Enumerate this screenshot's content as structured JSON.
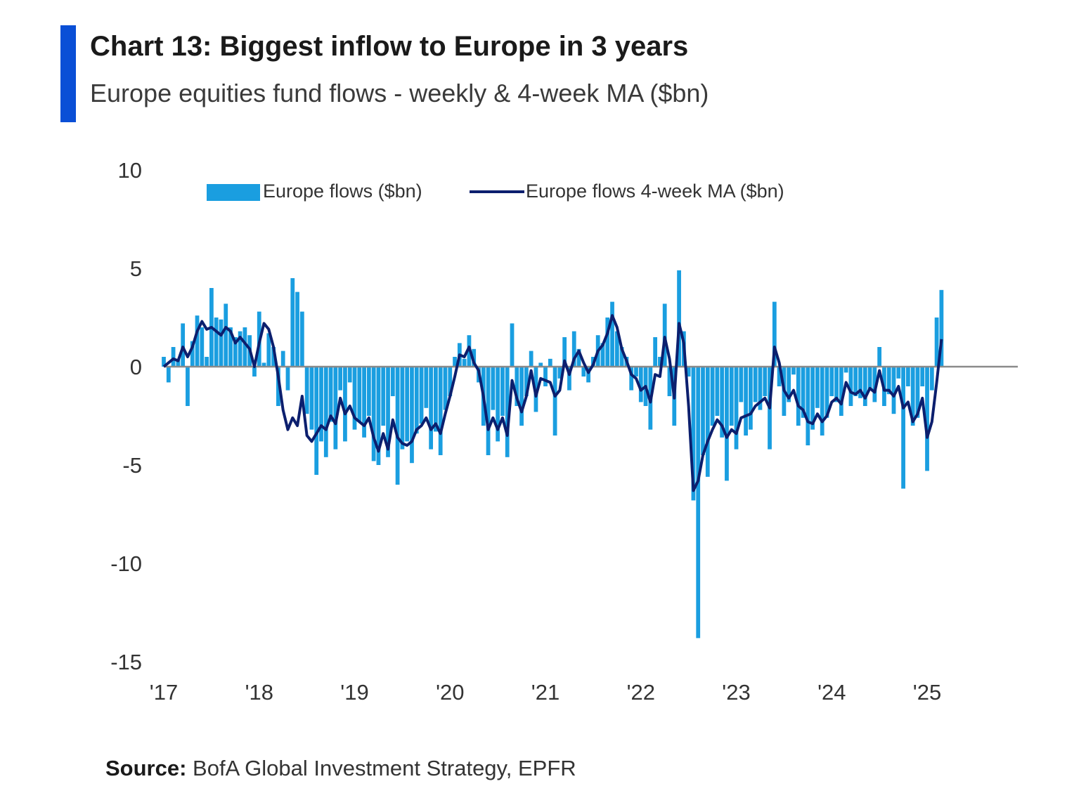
{
  "header": {
    "accent_color": "#0a4fd6",
    "title": "Chart 13: Biggest inflow to Europe in 3 years",
    "subtitle": "Europe equities fund flows - weekly & 4-week MA ($bn)"
  },
  "footer": {
    "source_label": "Source:",
    "source_text": " BofA Global Investment Strategy, EPFR"
  },
  "chart_data": {
    "type": "bar",
    "ylim": [
      -15,
      10
    ],
    "yticks": [
      10,
      5,
      0,
      -5,
      -10,
      -15
    ],
    "xlim": [
      2017.0,
      2025.95
    ],
    "xticks": [
      {
        "x": 2017.0,
        "label": "'17"
      },
      {
        "x": 2018.0,
        "label": "'18"
      },
      {
        "x": 2019.0,
        "label": "'19"
      },
      {
        "x": 2020.0,
        "label": "'20"
      },
      {
        "x": 2021.0,
        "label": "'21"
      },
      {
        "x": 2022.0,
        "label": "'22"
      },
      {
        "x": 2023.0,
        "label": "'23"
      },
      {
        "x": 2024.0,
        "label": "'24"
      },
      {
        "x": 2025.0,
        "label": "'25"
      }
    ],
    "legend_placement": "top",
    "grid": false,
    "series": [
      {
        "name": "Europe flows ($bn)",
        "kind": "bar",
        "color": "#1a9ee0",
        "x": [
          2017.0,
          2017.05,
          2017.1,
          2017.15,
          2017.2,
          2017.25,
          2017.3,
          2017.35,
          2017.4,
          2017.45,
          2017.5,
          2017.55,
          2017.6,
          2017.65,
          2017.7,
          2017.75,
          2017.8,
          2017.85,
          2017.9,
          2017.95,
          2018.0,
          2018.05,
          2018.1,
          2018.15,
          2018.2,
          2018.25,
          2018.3,
          2018.35,
          2018.4,
          2018.45,
          2018.5,
          2018.55,
          2018.6,
          2018.65,
          2018.7,
          2018.75,
          2018.8,
          2018.85,
          2018.9,
          2018.95,
          2019.0,
          2019.05,
          2019.1,
          2019.15,
          2019.2,
          2019.25,
          2019.3,
          2019.35,
          2019.4,
          2019.45,
          2019.5,
          2019.55,
          2019.6,
          2019.65,
          2019.7,
          2019.75,
          2019.8,
          2019.85,
          2019.9,
          2019.95,
          2020.0,
          2020.05,
          2020.1,
          2020.15,
          2020.2,
          2020.25,
          2020.3,
          2020.35,
          2020.4,
          2020.45,
          2020.5,
          2020.55,
          2020.6,
          2020.65,
          2020.7,
          2020.75,
          2020.8,
          2020.85,
          2020.9,
          2020.95,
          2021.0,
          2021.05,
          2021.1,
          2021.15,
          2021.2,
          2021.25,
          2021.3,
          2021.35,
          2021.4,
          2021.45,
          2021.5,
          2021.55,
          2021.6,
          2021.65,
          2021.7,
          2021.75,
          2021.8,
          2021.85,
          2021.9,
          2021.95,
          2022.0,
          2022.05,
          2022.1,
          2022.15,
          2022.2,
          2022.25,
          2022.3,
          2022.35,
          2022.4,
          2022.45,
          2022.5,
          2022.55,
          2022.6,
          2022.65,
          2022.7,
          2022.75,
          2022.8,
          2022.85,
          2022.9,
          2022.95,
          2023.0,
          2023.05,
          2023.1,
          2023.15,
          2023.2,
          2023.25,
          2023.3,
          2023.35,
          2023.4,
          2023.45,
          2023.5,
          2023.55,
          2023.6,
          2023.65,
          2023.7,
          2023.75,
          2023.8,
          2023.85,
          2023.9,
          2023.95,
          2024.0,
          2024.05,
          2024.1,
          2024.15,
          2024.2,
          2024.25,
          2024.3,
          2024.35,
          2024.4,
          2024.45,
          2024.5,
          2024.55,
          2024.6,
          2024.65,
          2024.7,
          2024.75,
          2024.8,
          2024.85,
          2024.9,
          2024.95,
          2025.0,
          2025.05,
          2025.1,
          2025.15
        ],
        "values": [
          0.5,
          -0.8,
          1.0,
          0.4,
          2.2,
          -2.0,
          1.3,
          2.6,
          2.0,
          0.5,
          4.0,
          2.5,
          2.4,
          3.2,
          2.0,
          1.5,
          1.8,
          2.0,
          1.6,
          -0.5,
          2.8,
          0.2,
          1.7,
          1.0,
          -2.0,
          0.8,
          -1.2,
          4.5,
          3.8,
          2.8,
          -2.4,
          -3.2,
          -5.5,
          -3.8,
          -4.6,
          -2.8,
          -4.2,
          -1.2,
          -3.8,
          -0.8,
          -3.2,
          -2.8,
          -3.6,
          -2.5,
          -4.8,
          -5.0,
          -3.0,
          -4.6,
          -1.5,
          -6.0,
          -4.2,
          -3.8,
          -4.9,
          -3.4,
          -2.9,
          -2.1,
          -4.2,
          -3.3,
          -4.5,
          -2.2,
          -1.5,
          0.5,
          1.2,
          0.4,
          1.6,
          0.9,
          -0.8,
          -3.0,
          -4.5,
          -2.2,
          -3.8,
          -2.5,
          -4.6,
          2.2,
          -2.0,
          -3.0,
          -1.5,
          0.8,
          -2.3,
          0.2,
          -1.0,
          0.4,
          -3.5,
          -0.6,
          1.5,
          -1.2,
          1.8,
          0.9,
          -0.5,
          -0.8,
          0.5,
          1.6,
          1.2,
          2.5,
          3.3,
          1.8,
          1.0,
          0.5,
          -1.2,
          -0.5,
          -1.8,
          -2.0,
          -3.2,
          1.5,
          0.5,
          3.2,
          -1.5,
          -3.0,
          4.9,
          1.8,
          -0.5,
          -6.8,
          -13.8,
          -4.5,
          -5.6,
          -3.0,
          -2.5,
          -3.6,
          -5.8,
          -3.0,
          -4.2,
          -1.8,
          -3.5,
          -3.2,
          -1.8,
          -2.2,
          -1.5,
          -4.2,
          3.3,
          -1.0,
          -2.5,
          -1.8,
          -0.4,
          -3.0,
          -2.6,
          -4.0,
          -3.2,
          -2.1,
          -3.5,
          -2.6,
          -1.5,
          -1.8,
          -2.5,
          -0.3,
          -2.0,
          -1.5,
          -1.6,
          -2.0,
          -1.2,
          -1.8,
          1.0,
          -2.0,
          -1.4,
          -2.4,
          -0.6,
          -6.2,
          -1.0,
          -3.0,
          -2.6,
          -1.0,
          -5.3,
          -1.2,
          2.5,
          3.9
        ]
      },
      {
        "name": "Europe flows 4-week MA ($bn)",
        "kind": "line",
        "color": "#0c1f6e",
        "x": [
          2017.0,
          2017.05,
          2017.1,
          2017.15,
          2017.2,
          2017.25,
          2017.3,
          2017.35,
          2017.4,
          2017.45,
          2017.5,
          2017.55,
          2017.6,
          2017.65,
          2017.7,
          2017.75,
          2017.8,
          2017.85,
          2017.9,
          2017.95,
          2018.0,
          2018.05,
          2018.1,
          2018.15,
          2018.2,
          2018.25,
          2018.3,
          2018.35,
          2018.4,
          2018.45,
          2018.5,
          2018.55,
          2018.6,
          2018.65,
          2018.7,
          2018.75,
          2018.8,
          2018.85,
          2018.9,
          2018.95,
          2019.0,
          2019.05,
          2019.1,
          2019.15,
          2019.2,
          2019.25,
          2019.3,
          2019.35,
          2019.4,
          2019.45,
          2019.5,
          2019.55,
          2019.6,
          2019.65,
          2019.7,
          2019.75,
          2019.8,
          2019.85,
          2019.9,
          2019.95,
          2020.0,
          2020.05,
          2020.1,
          2020.15,
          2020.2,
          2020.25,
          2020.3,
          2020.35,
          2020.4,
          2020.45,
          2020.5,
          2020.55,
          2020.6,
          2020.65,
          2020.7,
          2020.75,
          2020.8,
          2020.85,
          2020.9,
          2020.95,
          2021.0,
          2021.05,
          2021.1,
          2021.15,
          2021.2,
          2021.25,
          2021.3,
          2021.35,
          2021.4,
          2021.45,
          2021.5,
          2021.55,
          2021.6,
          2021.65,
          2021.7,
          2021.75,
          2021.8,
          2021.85,
          2021.9,
          2021.95,
          2022.0,
          2022.05,
          2022.1,
          2022.15,
          2022.2,
          2022.25,
          2022.3,
          2022.35,
          2022.4,
          2022.45,
          2022.5,
          2022.55,
          2022.6,
          2022.65,
          2022.7,
          2022.75,
          2022.8,
          2022.85,
          2022.9,
          2022.95,
          2023.0,
          2023.05,
          2023.1,
          2023.15,
          2023.2,
          2023.25,
          2023.3,
          2023.35,
          2023.4,
          2023.45,
          2023.5,
          2023.55,
          2023.6,
          2023.65,
          2023.7,
          2023.75,
          2023.8,
          2023.85,
          2023.9,
          2023.95,
          2024.0,
          2024.05,
          2024.1,
          2024.15,
          2024.2,
          2024.25,
          2024.3,
          2024.35,
          2024.4,
          2024.45,
          2024.5,
          2024.55,
          2024.6,
          2024.65,
          2024.7,
          2024.75,
          2024.8,
          2024.85,
          2024.9,
          2024.95,
          2025.0,
          2025.05,
          2025.1,
          2025.15
        ],
        "values": [
          0.0,
          0.2,
          0.4,
          0.3,
          1.0,
          0.5,
          1.0,
          1.8,
          2.3,
          1.9,
          2.0,
          1.8,
          1.6,
          2.0,
          1.8,
          1.2,
          1.5,
          1.2,
          0.9,
          0.0,
          1.2,
          2.2,
          1.9,
          1.0,
          -0.5,
          -2.2,
          -3.2,
          -2.6,
          -3.0,
          -1.5,
          -3.5,
          -3.8,
          -3.4,
          -3.0,
          -3.2,
          -2.5,
          -2.9,
          -1.6,
          -2.4,
          -2.0,
          -2.6,
          -2.8,
          -3.0,
          -2.6,
          -3.6,
          -4.3,
          -3.4,
          -4.2,
          -2.7,
          -3.6,
          -3.9,
          -4.0,
          -3.8,
          -3.2,
          -3.0,
          -2.6,
          -3.2,
          -2.9,
          -3.4,
          -2.4,
          -1.5,
          -0.5,
          0.6,
          0.5,
          1.0,
          0.2,
          -0.2,
          -1.5,
          -3.2,
          -2.6,
          -3.2,
          -2.6,
          -3.5,
          -0.7,
          -1.6,
          -2.3,
          -1.5,
          -0.2,
          -1.5,
          -0.6,
          -0.7,
          -0.8,
          -1.5,
          -1.2,
          0.3,
          -0.4,
          0.4,
          0.8,
          0.2,
          -0.3,
          0.1,
          0.8,
          1.1,
          1.7,
          2.6,
          2.0,
          0.9,
          0.3,
          -0.4,
          -0.6,
          -1.2,
          -1.0,
          -1.8,
          -0.4,
          -0.5,
          1.5,
          0.4,
          -1.6,
          2.2,
          1.2,
          -2.0,
          -6.3,
          -5.8,
          -4.5,
          -3.8,
          -3.2,
          -2.7,
          -3.0,
          -3.6,
          -3.2,
          -3.4,
          -2.6,
          -2.5,
          -2.4,
          -2.0,
          -1.8,
          -1.6,
          -2.1,
          1.0,
          0.2,
          -1.2,
          -1.6,
          -1.2,
          -2.0,
          -2.2,
          -2.8,
          -2.9,
          -2.4,
          -2.8,
          -2.5,
          -1.8,
          -1.6,
          -1.9,
          -0.8,
          -1.3,
          -1.4,
          -1.2,
          -1.6,
          -1.1,
          -1.3,
          -0.2,
          -1.2,
          -1.2,
          -1.5,
          -1.0,
          -2.1,
          -1.8,
          -2.8,
          -2.4,
          -1.6,
          -3.6,
          -2.8,
          -0.8,
          1.4
        ]
      }
    ]
  }
}
